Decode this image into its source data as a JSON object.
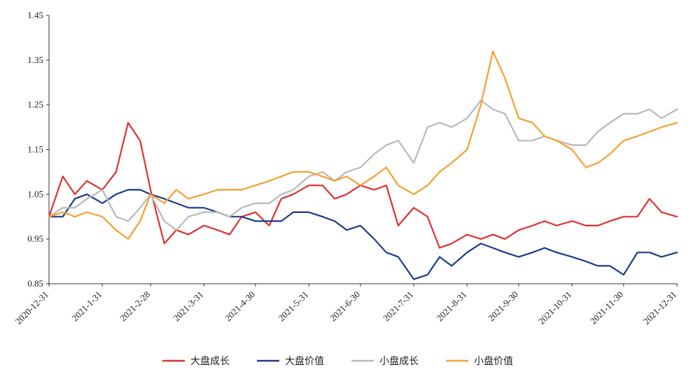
{
  "chart_data": {
    "type": "line",
    "title": "",
    "xlabel": "",
    "ylabel": "",
    "ylim": [
      0.85,
      1.45
    ],
    "yticks": [
      "1.45",
      "1.35",
      "1.25",
      "1.15",
      "1.05",
      "0.95",
      "0.85"
    ],
    "y_tick_values": [
      1.45,
      1.35,
      1.25,
      1.15,
      1.05,
      0.95,
      0.85
    ],
    "xticks": [
      "2020-12-31",
      "2021-1-31",
      "2021-2-28",
      "2021-3-31",
      "2021-4-30",
      "2021-5-31",
      "2021-6-30",
      "2021-7-31",
      "2021-8-31",
      "2021-9-30",
      "2021-10-31",
      "2021-11-30",
      "2021-12-31"
    ],
    "legend_position": "bottom",
    "grid": false,
    "x": [
      "2020-12-31",
      "2021-01-08",
      "2021-01-15",
      "2021-01-22",
      "2021-01-31",
      "2021-02-08",
      "2021-02-15",
      "2021-02-22",
      "2021-02-28",
      "2021-03-08",
      "2021-03-15",
      "2021-03-22",
      "2021-03-31",
      "2021-04-08",
      "2021-04-15",
      "2021-04-22",
      "2021-04-30",
      "2021-05-08",
      "2021-05-15",
      "2021-05-22",
      "2021-05-31",
      "2021-06-08",
      "2021-06-15",
      "2021-06-22",
      "2021-06-30",
      "2021-07-08",
      "2021-07-15",
      "2021-07-22",
      "2021-07-31",
      "2021-08-08",
      "2021-08-15",
      "2021-08-22",
      "2021-08-31",
      "2021-09-08",
      "2021-09-15",
      "2021-09-22",
      "2021-09-30",
      "2021-10-08",
      "2021-10-15",
      "2021-10-22",
      "2021-10-31",
      "2021-11-08",
      "2021-11-15",
      "2021-11-22",
      "2021-11-30",
      "2021-12-08",
      "2021-12-15",
      "2021-12-22",
      "2021-12-31"
    ],
    "series": [
      {
        "name": "大盘成长",
        "color": "#e03030",
        "values": [
          1.0,
          1.09,
          1.05,
          1.08,
          1.06,
          1.1,
          1.21,
          1.17,
          1.06,
          0.94,
          0.97,
          0.96,
          0.98,
          0.97,
          0.96,
          1.0,
          1.01,
          0.98,
          1.04,
          1.05,
          1.07,
          1.07,
          1.04,
          1.05,
          1.07,
          1.06,
          1.07,
          0.98,
          1.02,
          1.0,
          0.93,
          0.94,
          0.96,
          0.95,
          0.96,
          0.95,
          0.97,
          0.98,
          0.99,
          0.98,
          0.99,
          0.98,
          0.98,
          0.99,
          1.0,
          1.0,
          1.04,
          1.01,
          1.0
        ]
      },
      {
        "name": "大盘价值",
        "color": "#1a3a8c",
        "values": [
          1.0,
          1.0,
          1.04,
          1.05,
          1.03,
          1.05,
          1.06,
          1.06,
          1.05,
          1.04,
          1.03,
          1.02,
          1.02,
          1.01,
          1.0,
          1.0,
          0.99,
          0.99,
          0.99,
          1.01,
          1.01,
          1.0,
          0.99,
          0.97,
          0.98,
          0.95,
          0.92,
          0.91,
          0.86,
          0.87,
          0.91,
          0.89,
          0.92,
          0.94,
          0.93,
          0.92,
          0.91,
          0.92,
          0.93,
          0.92,
          0.91,
          0.9,
          0.89,
          0.89,
          0.87,
          0.92,
          0.92,
          0.91,
          0.92
        ]
      },
      {
        "name": "小盘成长",
        "color": "#b8b8b8",
        "values": [
          1.0,
          1.02,
          1.02,
          1.04,
          1.06,
          1.0,
          0.99,
          1.02,
          1.05,
          0.99,
          0.97,
          1.0,
          1.01,
          1.01,
          1.0,
          1.02,
          1.03,
          1.03,
          1.05,
          1.06,
          1.09,
          1.1,
          1.08,
          1.1,
          1.11,
          1.14,
          1.16,
          1.17,
          1.12,
          1.2,
          1.21,
          1.2,
          1.22,
          1.26,
          1.24,
          1.23,
          1.17,
          1.17,
          1.18,
          1.17,
          1.16,
          1.16,
          1.19,
          1.21,
          1.23,
          1.23,
          1.24,
          1.22,
          1.24
        ]
      },
      {
        "name": "小盘价值",
        "color": "#f5a030",
        "values": [
          1.0,
          1.01,
          1.0,
          1.01,
          1.0,
          0.97,
          0.95,
          0.99,
          1.05,
          1.03,
          1.06,
          1.04,
          1.05,
          1.06,
          1.06,
          1.06,
          1.07,
          1.08,
          1.09,
          1.1,
          1.1,
          1.09,
          1.08,
          1.09,
          1.07,
          1.09,
          1.11,
          1.07,
          1.05,
          1.07,
          1.1,
          1.12,
          1.15,
          1.25,
          1.37,
          1.31,
          1.22,
          1.21,
          1.18,
          1.17,
          1.15,
          1.11,
          1.12,
          1.14,
          1.17,
          1.18,
          1.19,
          1.2,
          1.21
        ]
      }
    ]
  }
}
